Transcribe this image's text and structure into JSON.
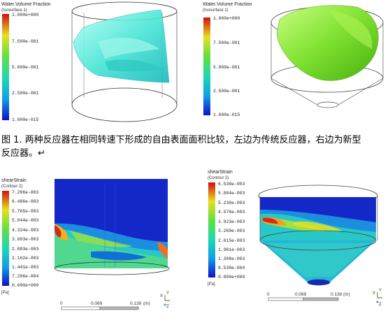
{
  "top_left_legend": {
    "title": "Water.Volume Fraction",
    "subtitle": "(Isosurface 1)",
    "ticks": [
      "1.000e+000",
      "7.500e-001",
      "5.000e-001",
      "2.500e-001",
      "1.000e-015"
    ]
  },
  "top_right_legend": {
    "title": "Water.Volume Fraction",
    "subtitle": "(Isosurface 1)",
    "ticks": [
      "1.000e+000",
      "7.500e-001",
      "5.000e-001",
      "2.500e-001",
      "1.000e-015"
    ]
  },
  "caption": {
    "line1": "图 1. 两种反应器在相同转速下形成的自由表面面积比较，左边为传统反应器，右边为新型",
    "line2": "反应器。↵"
  },
  "bottom_left_legend": {
    "title": "shearStrain",
    "subtitle": "(Contour 2)",
    "ticks": [
      "7.206e-003",
      "6.486e-003",
      "5.765e-003",
      "5.044e-003",
      "4.324e-003",
      "3.603e-003",
      "2.883e-003",
      "2.162e-003",
      "1.441e-003",
      "7.206e-004",
      "0.000e+000"
    ],
    "unit": "[Pa]"
  },
  "bottom_right_legend": {
    "title": "shearStrain",
    "subtitle": "(Contour 2)",
    "ticks": [
      "6.538e-003",
      "5.884e-003",
      "5.230e-003",
      "4.576e-003",
      "3.923e-003",
      "3.269e-003",
      "2.615e-003",
      "1.961e-003",
      "1.308e-003",
      "6.538e-004",
      "0.000e+000"
    ],
    "unit": "[Pa]"
  },
  "bottom_left_scale": {
    "labels": [
      "0",
      "0.069",
      "0.138",
      "(m)"
    ]
  },
  "bottom_right_scale": {
    "labels": [
      "0",
      "0.069",
      "0.138",
      "(m)"
    ]
  },
  "axis_triad": {
    "x": "X",
    "y": "Y",
    "z": "Z"
  },
  "colors": {
    "rainbow": [
      "#1010c8",
      "#1060e8",
      "#10b0e8",
      "#20d8c0",
      "#30e080",
      "#60e040",
      "#b0e030",
      "#e8e020",
      "#f0a020",
      "#e85020",
      "#d01010"
    ],
    "top_left_surface": "#40e0d0",
    "top_right_surface": "#7ed321"
  }
}
